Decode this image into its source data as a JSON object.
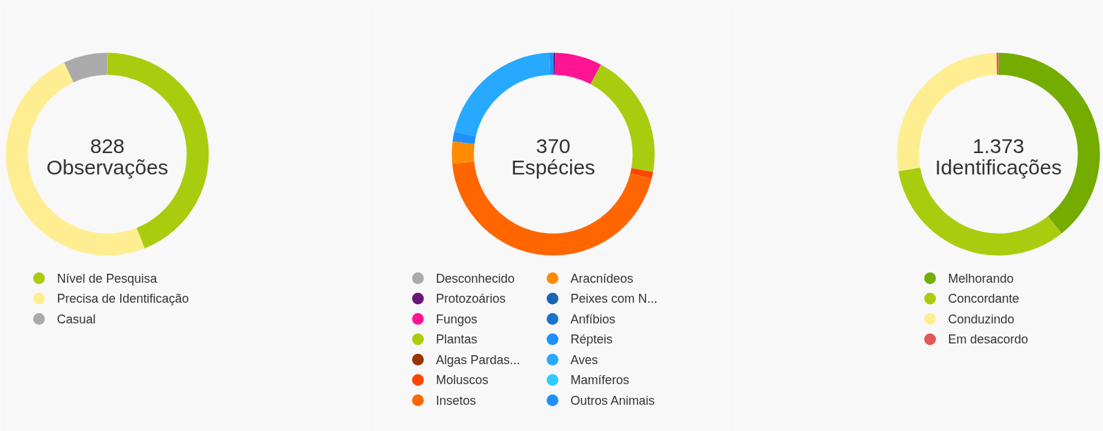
{
  "chart_data": [
    {
      "type": "donut",
      "title": "828",
      "subtitle": "Observações",
      "legend": "bottom",
      "categories": [
        "Nível de Pesquisa",
        "Precisa de Identificação",
        "Casual"
      ],
      "values": [
        44,
        49,
        7
      ],
      "colors": [
        "#aacc0f",
        "#ffee91",
        "#aaaaaa"
      ]
    },
    {
      "type": "donut",
      "title": "370",
      "subtitle": "Espécies",
      "legend": "bottom",
      "categories": [
        "Desconhecido",
        "Protozoários",
        "Fungos",
        "Plantas",
        "Algas Pardas...",
        "Moluscos",
        "Insetos",
        "Aracnídeos",
        "Peixes com N...",
        "Anfíbios",
        "Répteis",
        "Aves",
        "Mamíferos",
        "Outros Animais"
      ],
      "values": [
        0,
        0.3,
        7.5,
        20.0,
        0,
        1.1,
        44.6,
        3.5,
        0,
        0,
        1.6,
        20.8,
        0,
        0.6
      ],
      "colors": [
        "#aaaaaa",
        "#691776",
        "#ff1493",
        "#aacc0f",
        "#993300",
        "#ff4500",
        "#ff6600",
        "#ff8c00",
        "#1965b0",
        "#1874cd",
        "#1e90ff",
        "#26a9ff",
        "#2dcbff",
        "#1e90ff"
      ]
    },
    {
      "type": "donut",
      "title": "1.373",
      "subtitle": "Identificações",
      "legend": "bottom",
      "categories": [
        "Melhorando",
        "Concordante",
        "Conduzindo",
        "Em desacordo"
      ],
      "values": [
        39.3,
        33,
        27.4,
        0.3
      ],
      "colors": [
        "#74ac00",
        "#aacc0f",
        "#ffee91",
        "#e05858"
      ]
    }
  ]
}
